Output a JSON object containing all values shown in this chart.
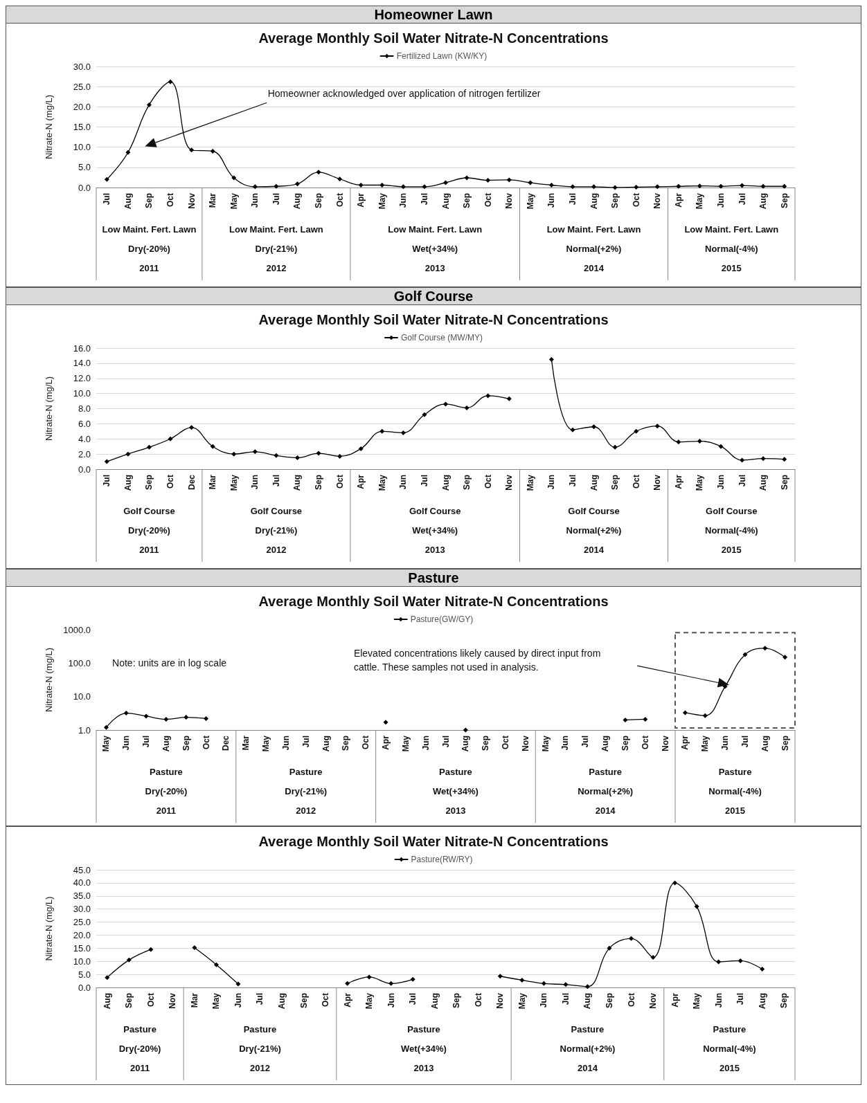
{
  "chart_data": [
    {
      "type": "line",
      "title": "Homeowner Lawn",
      "subtitle": "Average Monthly Soil Water Nitrate-N Concentrations",
      "ylabel": "Nitrate-N (mg/L)",
      "legend": "top",
      "grid": "y",
      "marker": "diamond",
      "line_style": "solid",
      "categories": [
        "Jul",
        "Aug",
        "Sep",
        "Oct",
        "Nov",
        "Mar",
        "May",
        "Jun",
        "Jul",
        "Aug",
        "Sep",
        "Oct",
        "Apr",
        "May",
        "Jun",
        "Jul",
        "Aug",
        "Sep",
        "Oct",
        "Nov",
        "May",
        "Jun",
        "Jul",
        "Aug",
        "Sep",
        "Oct",
        "Nov",
        "Apr",
        "May",
        "Jun",
        "Jul",
        "Aug",
        "Sep"
      ],
      "series": [
        {
          "name": "Fertilized Lawn (KW/KY)",
          "color": "#000000",
          "values": [
            2.0,
            8.7,
            20.5,
            26.2,
            9.3,
            9.0,
            2.4,
            0.2,
            0.3,
            0.9,
            3.8,
            2.1,
            0.6,
            0.6,
            0.2,
            0.2,
            1.2,
            2.4,
            1.8,
            1.9,
            1.2,
            0.6,
            0.2,
            0.2,
            0.0,
            0.1,
            0.2,
            0.3,
            0.4,
            0.3,
            0.5,
            0.3,
            0.3
          ]
        }
      ],
      "ylim": [
        0,
        30
      ],
      "yticks": [
        {
          "value": 0,
          "label": "0.0"
        },
        {
          "value": 5,
          "label": "5.0"
        },
        {
          "value": 10,
          "label": "10.0"
        },
        {
          "value": 15,
          "label": "15.0"
        },
        {
          "value": 20,
          "label": "20.0"
        },
        {
          "value": 25,
          "label": "25.0"
        },
        {
          "value": 30,
          "label": "30.0"
        }
      ],
      "annotations": [
        "Homeowner acknowledged over application of nitrogen fertilizer",
        "Low Maint. Fert. Lawn",
        "Low Maint. Fert. Lawn",
        "Low Maint. Fert. Lawn",
        "Low Maint. Fert. Lawn",
        "Low Maint. Fert. Lawn",
        "Dry(-20%)",
        "Dry(-21%)",
        "Wet(+34%)",
        "Normal(+2%)",
        "Normal(-4%)",
        "2011",
        "2012",
        "2013",
        "2014",
        "2015"
      ]
    },
    {
      "type": "line",
      "title": "Golf Course",
      "subtitle": "Average Monthly Soil Water Nitrate-N Concentrations",
      "ylabel": "Nitrate-N (mg/L)",
      "legend": "top",
      "grid": "y",
      "marker": "diamond",
      "line_style": "solid",
      "categories": [
        "Jul",
        "Aug",
        "Sep",
        "Oct",
        "Dec",
        "Mar",
        "May",
        "Jun",
        "Jul",
        "Aug",
        "Sep",
        "Oct",
        "Apr",
        "May",
        "Jun",
        "Jul",
        "Aug",
        "Sep",
        "Oct",
        "Nov",
        "May",
        "Jun",
        "Jul",
        "Aug",
        "Sep",
        "Oct",
        "Nov",
        "Apr",
        "May",
        "Jun",
        "Jul",
        "Aug",
        "Sep"
      ],
      "series": [
        {
          "name": "Golf Course (MW/MY)",
          "color": "#000000",
          "values": [
            1.0,
            2.0,
            2.9,
            4.0,
            5.5,
            3.0,
            2.0,
            2.3,
            1.8,
            1.5,
            2.1,
            1.7,
            2.7,
            5.0,
            4.8,
            7.2,
            8.6,
            8.1,
            9.7,
            9.3,
            null,
            14.5,
            5.2,
            5.6,
            2.9,
            5.0,
            5.7,
            3.6,
            3.7,
            3.0,
            1.2,
            1.4,
            1.3
          ]
        }
      ],
      "ylim": [
        0,
        16
      ],
      "yticks": [
        {
          "value": 0,
          "label": "0.0"
        },
        {
          "value": 2,
          "label": "2.0"
        },
        {
          "value": 4,
          "label": "4.0"
        },
        {
          "value": 6,
          "label": "6.0"
        },
        {
          "value": 8,
          "label": "8.0"
        },
        {
          "value": 10,
          "label": "10.0"
        },
        {
          "value": 12,
          "label": "12.0"
        },
        {
          "value": 14,
          "label": "14.0"
        },
        {
          "value": 16,
          "label": "16.0"
        }
      ],
      "annotations": [
        "Golf Course",
        "Golf Course",
        "Golf Course",
        "Golf Course",
        "Golf Course",
        "Dry(-20%)",
        "Dry(-21%)",
        "Wet(+34%)",
        "Normal(+2%)",
        "Normal(-4%)",
        "2011",
        "2012",
        "2013",
        "2014",
        "2015"
      ]
    },
    {
      "type": "line",
      "title": "Pasture",
      "subtitle": "Average Monthly Soil Water Nitrate-N Concentrations",
      "ylabel": "Nitrate-N (mg/L)",
      "legend": "top",
      "marker": "diamond",
      "line_style": "solid",
      "log": "y",
      "categories": [
        "May",
        "Jun",
        "Jul",
        "Aug",
        "Sep",
        "Oct",
        "Dec",
        "Mar",
        "May",
        "Jun",
        "Jul",
        "Aug",
        "Sep",
        "Oct",
        "Apr",
        "May",
        "Jun",
        "Jul",
        "Aug",
        "Sep",
        "Oct",
        "Nov",
        "May",
        "Jun",
        "Jul",
        "Aug",
        "Sep",
        "Oct",
        "Nov",
        "Apr",
        "May",
        "Jun",
        "Jul",
        "Aug",
        "Sep"
      ],
      "series": [
        {
          "name": "Pasture(GW/GY)",
          "color": "#000000",
          "values": [
            1.2,
            3.2,
            2.6,
            2.1,
            2.4,
            2.2,
            null,
            null,
            null,
            null,
            null,
            null,
            null,
            null,
            1.7,
            null,
            null,
            null,
            1.0,
            null,
            null,
            null,
            null,
            null,
            null,
            null,
            2.0,
            2.1,
            null,
            3.3,
            2.7,
            20,
            180,
            280,
            150
          ]
        }
      ],
      "ylim": [
        1,
        1000
      ],
      "yticks": [
        {
          "value": 1,
          "label": "1.0"
        },
        {
          "value": 10,
          "label": "10.0"
        },
        {
          "value": 100,
          "label": "100.0"
        },
        {
          "value": 1000,
          "label": "1000.0"
        }
      ],
      "annotations": [
        "Note: units are in log scale",
        "Elevated concentrations likely caused by direct input from cattle. These samples not used in analysis.",
        "Pasture",
        "Pasture",
        "Pasture",
        "Pasture",
        "Pasture",
        "Dry(-20%)",
        "Dry(-21%)",
        "Wet(+34%)",
        "Normal(+2%)",
        "Normal(-4%)",
        "2011",
        "2012",
        "2013",
        "2014",
        "2015"
      ]
    },
    {
      "type": "line",
      "subtitle": "Average Monthly Soil Water Nitrate-N Concentrations",
      "ylabel": "Nitrate-N (mg/L)",
      "legend": "top",
      "grid": "y",
      "marker": "diamond",
      "line_style": "solid",
      "categories": [
        "Aug",
        "Sep",
        "Oct",
        "Nov",
        "Mar",
        "May",
        "Jun",
        "Jul",
        "Aug",
        "Sep",
        "Oct",
        "Apr",
        "May",
        "Jun",
        "Jul",
        "Aug",
        "Sep",
        "Oct",
        "Nov",
        "May",
        "Jun",
        "Jul",
        "Aug",
        "Sep",
        "Oct",
        "Nov",
        "Apr",
        "May",
        "Jun",
        "Jul",
        "Aug",
        "Sep"
      ],
      "series": [
        {
          "name": "Pasture(RW/RY)",
          "color": "#000000",
          "values": [
            3.8,
            10.5,
            14.5,
            null,
            15.2,
            8.7,
            1.3,
            null,
            null,
            null,
            null,
            1.5,
            4.0,
            1.5,
            3.1,
            null,
            null,
            null,
            4.3,
            2.8,
            1.5,
            1.1,
            0.3,
            15.0,
            18.7,
            11.5,
            40.0,
            31.0,
            9.8,
            10.2,
            7.0,
            null
          ]
        }
      ],
      "ylim": [
        0,
        45
      ],
      "yticks": [
        {
          "value": 0,
          "label": "0.0"
        },
        {
          "value": 5,
          "label": "5.0"
        },
        {
          "value": 10,
          "label": "10.0"
        },
        {
          "value": 15,
          "label": "15.0"
        },
        {
          "value": 20,
          "label": "20.0"
        },
        {
          "value": 25,
          "label": "25.0"
        },
        {
          "value": 30,
          "label": "30.0"
        },
        {
          "value": 35,
          "label": "35.0"
        },
        {
          "value": 40,
          "label": "40.0"
        },
        {
          "value": 45,
          "label": "45.0"
        }
      ],
      "annotations": [
        "Pasture",
        "Pasture",
        "Pasture",
        "Pasture",
        "Pasture",
        "Dry(-20%)",
        "Dry(-21%)",
        "Wet(+34%)",
        "Normal(+2%)",
        "Normal(-4%)",
        "2011",
        "2012",
        "2013",
        "2014",
        "2015"
      ]
    }
  ]
}
